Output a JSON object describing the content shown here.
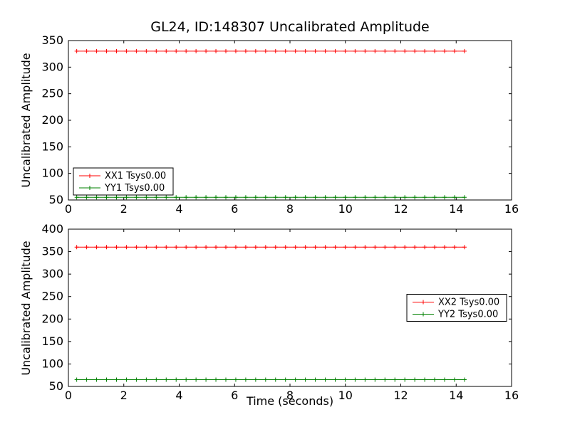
{
  "figure": {
    "background": "#ffffff",
    "frame_color": "#000000"
  },
  "chart_data": [
    {
      "type": "line",
      "title": "GL24, ID:148307 Uncalibrated Amplitude",
      "xlabel": "",
      "ylabel": "Uncalibrated Amplitude",
      "xlim": [
        0,
        16
      ],
      "ylim": [
        50,
        350
      ],
      "xticks": [
        0,
        2,
        4,
        6,
        8,
        10,
        12,
        14,
        16
      ],
      "yticks": [
        50,
        100,
        150,
        200,
        250,
        300,
        350
      ],
      "grid": false,
      "legend_position": "lower left",
      "series": [
        {
          "name": "XX1 Tsys0.00",
          "color": "#ff0000",
          "marker": "plus",
          "x_start": 0.3,
          "x_end": 14.3,
          "n_points": 40,
          "y_constant": 330
        },
        {
          "name": "YY1 Tsys0.00",
          "color": "#008000",
          "marker": "plus",
          "x_start": 0.3,
          "x_end": 14.3,
          "n_points": 40,
          "y_constant": 55
        }
      ]
    },
    {
      "type": "line",
      "title": "",
      "xlabel": "Time (seconds)",
      "ylabel": "Uncalibrated Amplitude",
      "xlim": [
        0,
        16
      ],
      "ylim": [
        50,
        400
      ],
      "xticks": [
        0,
        2,
        4,
        6,
        8,
        10,
        12,
        14,
        16
      ],
      "yticks": [
        50,
        100,
        150,
        200,
        250,
        300,
        350,
        400
      ],
      "grid": false,
      "legend_position": "center right",
      "series": [
        {
          "name": "XX2 Tsys0.00",
          "color": "#ff0000",
          "marker": "plus",
          "x_start": 0.3,
          "x_end": 14.3,
          "n_points": 40,
          "y_constant": 360
        },
        {
          "name": "YY2 Tsys0.00",
          "color": "#008000",
          "marker": "plus",
          "x_start": 0.3,
          "x_end": 14.3,
          "n_points": 40,
          "y_constant": 65
        }
      ]
    }
  ]
}
